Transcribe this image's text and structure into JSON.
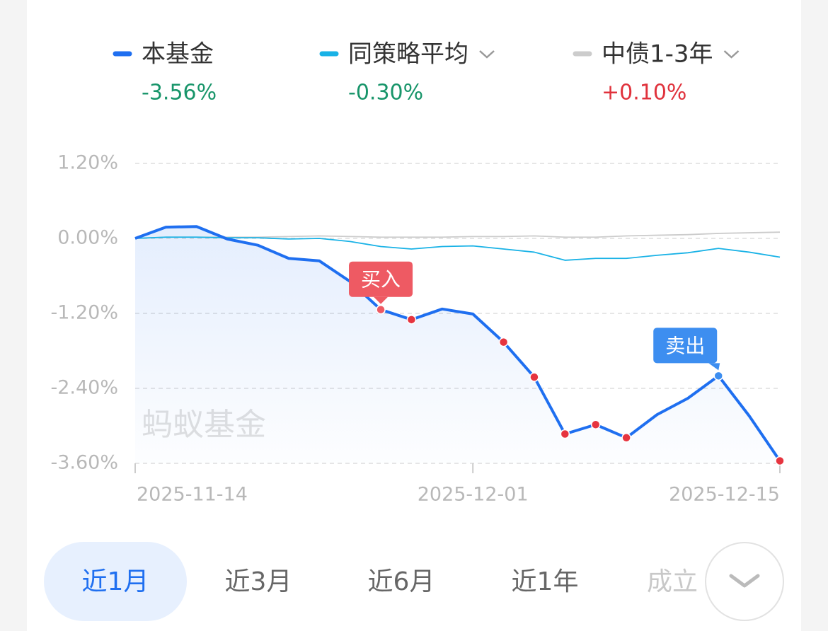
{
  "chart_data": {
    "type": "line",
    "categories": [
      "2025-11-14",
      null,
      null,
      null,
      null,
      null,
      null,
      null,
      null,
      null,
      null,
      "2025-12-01",
      null,
      null,
      null,
      null,
      null,
      null,
      null,
      null,
      null,
      "2025-12-15"
    ],
    "series": [
      {
        "name": "本基金",
        "color": "#1f6ff0",
        "change_label": "-3.56%",
        "change_color": "#18956a",
        "values": [
          0,
          0.18,
          0.19,
          -0.01,
          -0.11,
          -0.32,
          -0.36,
          -0.69,
          -1.14,
          -1.3,
          -1.13,
          -1.21,
          -1.66,
          -2.22,
          -3.13,
          -2.98,
          -3.19,
          -2.82,
          -2.56,
          -2.2,
          -2.84,
          -3.56
        ]
      },
      {
        "name": "同策略平均",
        "color": "#19b2e6",
        "change_label": "-0.30%",
        "change_color": "#18956a",
        "values": [
          0,
          0.02,
          0.02,
          0.01,
          0.01,
          -0.01,
          0,
          -0.05,
          -0.13,
          -0.17,
          -0.13,
          -0.12,
          -0.17,
          -0.22,
          -0.35,
          -0.32,
          -0.32,
          -0.27,
          -0.23,
          -0.16,
          -0.22,
          -0.3
        ]
      },
      {
        "name": "中债1-3年",
        "color": "#cccccc",
        "change_label": "+0.10%",
        "change_color": "#e0323c",
        "values": [
          0,
          0.02,
          0.02,
          0.02,
          0.02,
          0.03,
          0.04,
          0.03,
          0.02,
          0.02,
          0.02,
          0.03,
          0.03,
          0.04,
          0.02,
          0.02,
          0.04,
          0.05,
          0.06,
          0.08,
          0.09,
          0.1
        ]
      }
    ],
    "ylim": [
      -3.6,
      1.2
    ],
    "yticks": [
      {
        "value": 1.2,
        "label": "1.20%"
      },
      {
        "value": 0,
        "label": "0.00%"
      },
      {
        "value": -1.2,
        "label": "-1.20%"
      },
      {
        "value": -2.4,
        "label": "-2.40%"
      },
      {
        "value": -3.6,
        "label": "-3.60%"
      }
    ],
    "grid": true,
    "highlight_points": [
      8,
      9,
      12,
      13,
      14,
      15,
      16,
      21
    ],
    "highlight_color": "#e6343f",
    "events": [
      {
        "label": "买入",
        "index": 8,
        "color": "#ee5a63"
      },
      {
        "label": "卖出",
        "index": 19,
        "color": "#3d8ef0"
      }
    ],
    "watermark": "蚂蚁基金"
  },
  "tabs": [
    "近1月",
    "近3月",
    "近6月",
    "近1年",
    "成立"
  ],
  "selected_tab_index": 0
}
